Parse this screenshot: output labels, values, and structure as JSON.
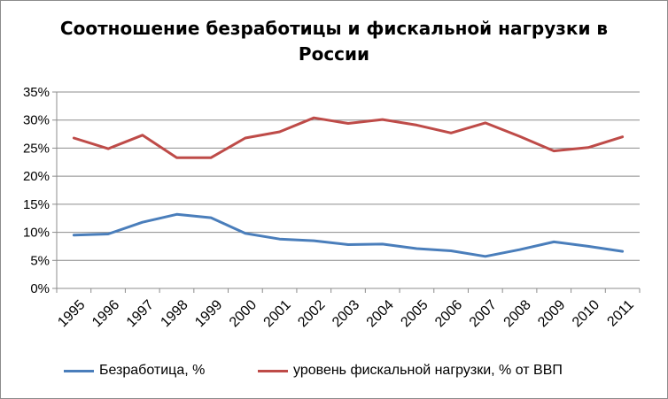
{
  "chart_data": {
    "type": "line",
    "title_lines": [
      "Соотношение безработицы и фискальной нагрузки в",
      "России"
    ],
    "categories": [
      "1995",
      "1996",
      "1997",
      "1998",
      "1999",
      "2000",
      "2001",
      "2002",
      "2003",
      "2004",
      "2005",
      "2006",
      "2007",
      "2008",
      "2009",
      "2010",
      "2011"
    ],
    "ylim": [
      0,
      35
    ],
    "yticks": [
      0,
      5,
      10,
      15,
      20,
      25,
      30,
      35
    ],
    "ytick_labels": [
      "0%",
      "5%",
      "10%",
      "15%",
      "20%",
      "25%",
      "30%",
      "35%"
    ],
    "grid": true,
    "legend_position": "bottom",
    "series": [
      {
        "name": "Безработица, %",
        "color": "#4a7ebb",
        "values": [
          9.5,
          9.7,
          11.8,
          13.2,
          12.6,
          9.8,
          8.8,
          8.5,
          7.8,
          7.9,
          7.1,
          6.7,
          5.7,
          6.9,
          8.3,
          7.5,
          6.6
        ]
      },
      {
        "name": "уровень фискальной нагрузки, % от ВВП",
        "color": "#be4b48",
        "values": [
          26.8,
          24.9,
          27.3,
          23.3,
          23.3,
          26.8,
          27.9,
          30.4,
          29.4,
          30.1,
          29.1,
          27.7,
          29.5,
          27.1,
          24.5,
          25.1,
          27.0
        ]
      }
    ]
  }
}
